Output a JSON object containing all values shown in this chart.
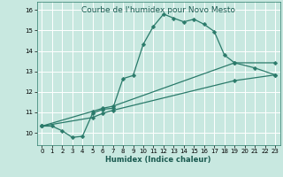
{
  "title": "Courbe de l'humidex pour Novo Mesto",
  "xlabel": "Humidex (Indice chaleur)",
  "ylabel": "",
  "bg_color": "#c8e8e0",
  "grid_color": "#ffffff",
  "line_color": "#2a7a6a",
  "xlim": [
    -0.5,
    23.5
  ],
  "ylim": [
    9.4,
    16.4
  ],
  "xticks": [
    0,
    1,
    2,
    3,
    4,
    5,
    6,
    7,
    8,
    9,
    10,
    11,
    12,
    13,
    14,
    15,
    16,
    17,
    18,
    19,
    20,
    21,
    22,
    23
  ],
  "yticks": [
    10,
    11,
    12,
    13,
    14,
    15,
    16
  ],
  "line1_x": [
    0,
    1,
    2,
    3,
    4,
    5,
    6,
    7,
    8,
    9,
    10,
    11,
    12,
    13,
    14,
    15,
    16,
    17,
    18,
    19,
    21,
    23
  ],
  "line1_y": [
    10.33,
    10.33,
    10.1,
    9.78,
    9.83,
    10.95,
    11.15,
    11.2,
    12.65,
    12.8,
    14.33,
    15.2,
    15.8,
    15.6,
    15.42,
    15.55,
    15.3,
    14.95,
    13.8,
    13.42,
    13.17,
    12.83
  ],
  "line2_x": [
    0,
    5,
    6,
    7,
    19,
    23
  ],
  "line2_y": [
    10.33,
    11.05,
    11.2,
    11.3,
    13.42,
    13.42
  ],
  "line3_x": [
    0,
    5,
    6,
    7,
    19,
    23
  ],
  "line3_y": [
    10.33,
    10.75,
    10.95,
    11.1,
    12.55,
    12.83
  ],
  "marker_size": 2.5,
  "linewidth": 0.9,
  "title_fontsize": 6.5,
  "axis_fontsize": 6,
  "tick_fontsize": 5
}
